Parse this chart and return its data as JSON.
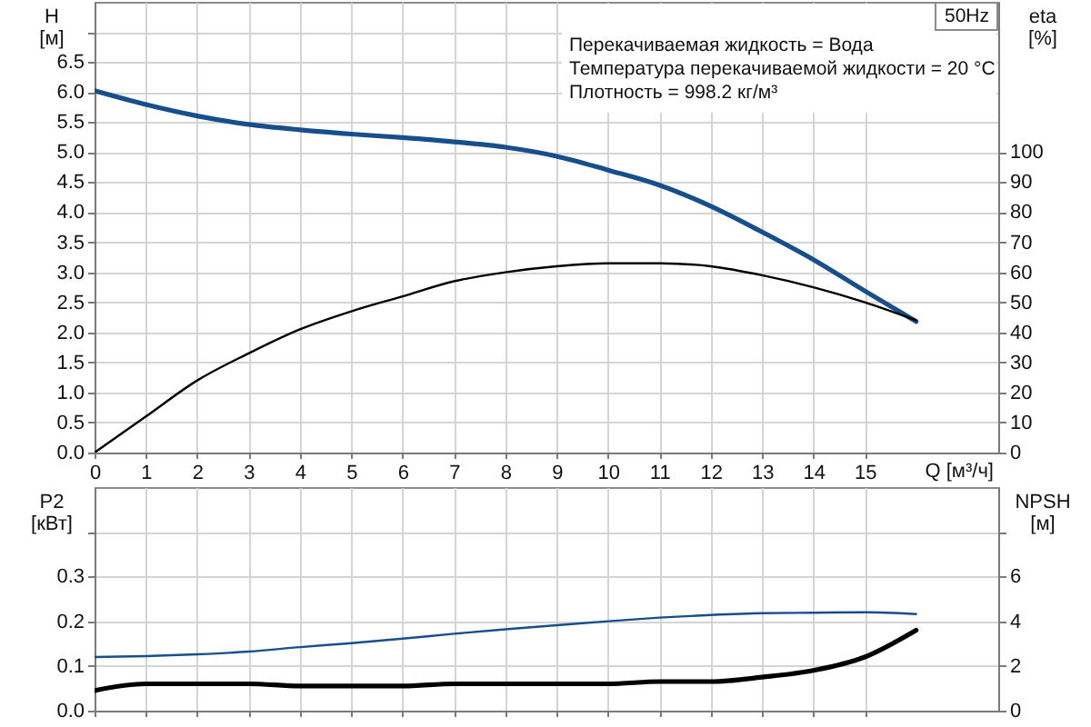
{
  "chart_data": [
    {
      "type": "line",
      "title": "50Hz",
      "xlabel": "Q [м³/ч]",
      "ylabel": "H [м]",
      "y2label": "eta [%]",
      "annotations": [
        "Перекачиваемая жидкость = Вода",
        "Температура перекачиваемой жидкости = 20 °C",
        "Плотность = 998.2 кг/м³"
      ],
      "x": [
        0,
        1,
        2,
        3,
        4,
        5,
        6,
        7,
        8,
        9,
        10,
        11,
        12,
        13,
        14,
        15,
        16
      ],
      "series": [
        {
          "color": "#164f8c",
          "values": [
            6.02,
            5.79,
            5.6,
            5.46,
            5.37,
            5.3,
            5.24,
            5.17,
            5.08,
            4.93,
            4.7,
            4.45,
            4.1,
            3.67,
            3.21,
            2.69,
            2.18
          ]
        },
        {
          "color": "#000000",
          "axis": "y2",
          "values": [
            0,
            12,
            24,
            33,
            41,
            47,
            52,
            57,
            60,
            62,
            63,
            63,
            62,
            59,
            55,
            50,
            44
          ]
        }
      ],
      "xlim": [
        0,
        17.6
      ],
      "xticks": [
        0,
        1,
        2,
        3,
        4,
        5,
        6,
        7,
        8,
        9,
        10,
        11,
        12,
        13,
        14,
        15
      ],
      "ylim": [
        0,
        7.5
      ],
      "yticks": [
        {
          "value": 0,
          "label": "0.0"
        },
        0.5,
        {
          "value": 1,
          "label": "1.0"
        },
        1.5,
        {
          "value": 2,
          "label": "2.0"
        },
        2.5,
        {
          "value": 3,
          "label": "3.0"
        },
        3.5,
        {
          "value": 4,
          "label": "4.0"
        },
        4.5,
        {
          "value": 5,
          "label": "5.0"
        },
        5.5,
        {
          "value": 6,
          "label": "6.0"
        },
        6.5,
        {
          "value": 7,
          "label": null
        }
      ],
      "y2lim": [
        0,
        150
      ],
      "y2ticks": [
        0,
        10,
        20,
        30,
        40,
        50,
        60,
        70,
        80,
        90,
        100
      ],
      "grid": true
    },
    {
      "type": "line",
      "ylabel": "P2 [кВт]",
      "y2label": "NPSH [м]",
      "x": [
        0,
        1,
        2,
        3,
        4,
        5,
        6,
        7,
        8,
        9,
        10,
        11,
        12,
        13,
        14,
        15,
        16
      ],
      "series": [
        {
          "color": "#164f8c",
          "values": [
            0.12,
            0.122,
            0.126,
            0.132,
            0.142,
            0.151,
            0.161,
            0.172,
            0.182,
            0.191,
            0.2,
            0.208,
            0.214,
            0.218,
            0.219,
            0.22,
            0.216
          ]
        },
        {
          "color": "#000000",
          "axis": "y2",
          "values": [
            0.9,
            1.2,
            1.2,
            1.2,
            1.1,
            1.1,
            1.1,
            1.2,
            1.2,
            1.2,
            1.2,
            1.3,
            1.3,
            1.5,
            1.8,
            2.4,
            3.6
          ]
        }
      ],
      "xlim": [
        0,
        17.6
      ],
      "xticks": [
        0,
        1,
        2,
        3,
        4,
        5,
        6,
        7,
        8,
        9,
        10,
        11,
        12,
        13,
        14,
        15
      ],
      "ylim": [
        0,
        0.5
      ],
      "yticks": [
        {
          "value": 0,
          "label": "0.0"
        },
        0.1,
        0.2,
        0.3,
        {
          "value": 0.4,
          "label": null
        }
      ],
      "y2lim": [
        0,
        10
      ],
      "y2ticks": [
        0,
        2,
        4,
        6,
        {
          "value": 8,
          "label": null
        }
      ],
      "grid": true,
      "tick_labels": "y"
    }
  ]
}
